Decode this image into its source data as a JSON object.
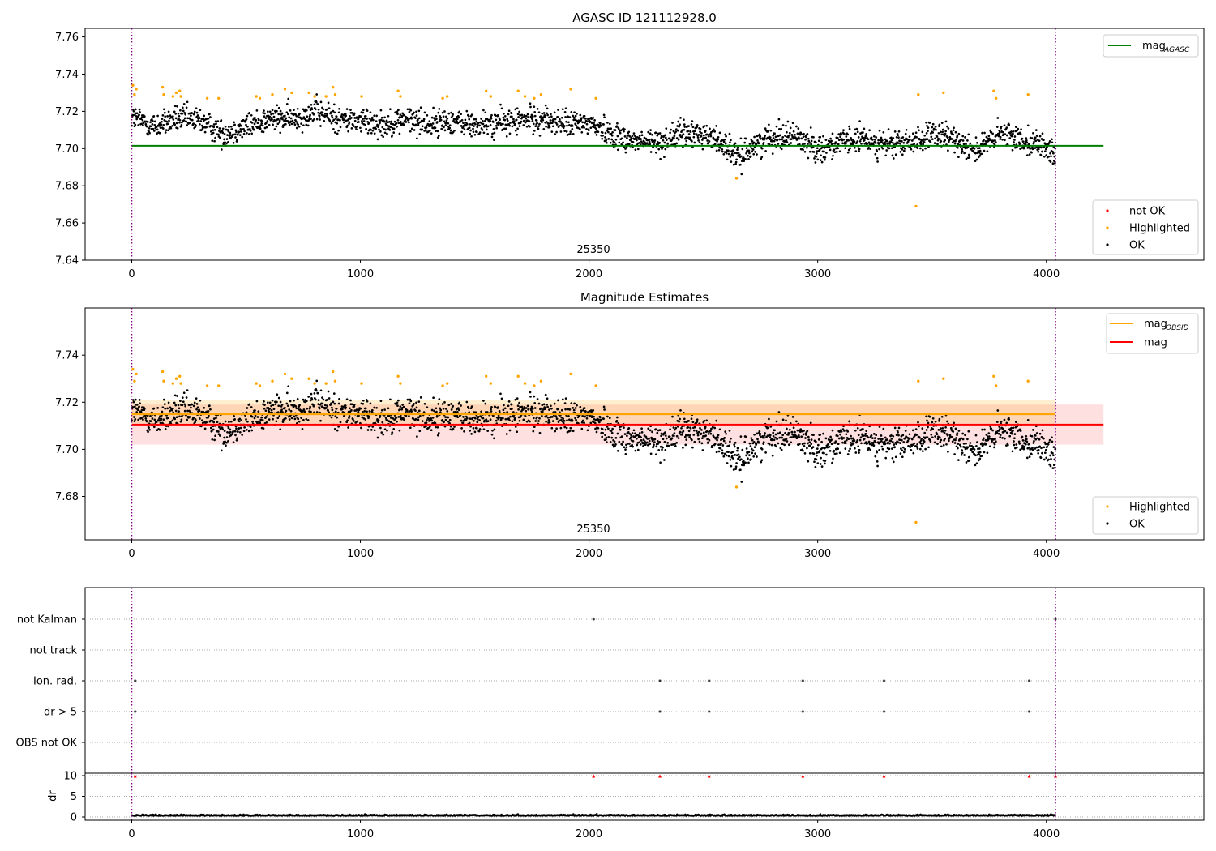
{
  "figure": {
    "title": "AGASC ID 121112928.0",
    "x_ticks": [
      0,
      1000,
      2000,
      3000,
      4000
    ],
    "obsid_markers": [
      0,
      4040
    ]
  },
  "chart_data": [
    {
      "type": "scatter",
      "title": "AGASC ID 121112928.0",
      "xlabel": "",
      "ylabel": "",
      "xlim": [
        -200,
        4700
      ],
      "ylim": [
        7.64,
        7.765
      ],
      "y_ticks": [
        "7.64",
        "7.66",
        "7.68",
        "7.70",
        "7.72",
        "7.74",
        "7.76"
      ],
      "obsid_label": "25350",
      "lines": [
        {
          "name": "mag_AGASC",
          "y": 7.7015,
          "x_range": [
            0,
            4250
          ],
          "color": "#008000"
        }
      ],
      "legends": [
        {
          "position": "top-right",
          "entries": [
            {
              "base": "mag",
              "sub": "AGASC",
              "kind": "line",
              "color": "#008000"
            }
          ]
        },
        {
          "position": "lower-right",
          "entries": [
            {
              "label": "not OK",
              "kind": "dot",
              "color": "#ff0000"
            },
            {
              "label": "Highlighted",
              "kind": "dot",
              "color": "#ffa500"
            },
            {
              "label": "OK",
              "kind": "dot",
              "color": "#000000"
            }
          ]
        }
      ],
      "highlighted_points": [
        [
          5,
          7.734
        ],
        [
          12,
          7.729
        ],
        [
          20,
          7.732
        ],
        [
          135,
          7.733
        ],
        [
          140,
          7.729
        ],
        [
          180,
          7.728
        ],
        [
          195,
          7.73
        ],
        [
          210,
          7.731
        ],
        [
          215,
          7.728
        ],
        [
          330,
          7.727
        ],
        [
          380,
          7.727
        ],
        [
          545,
          7.728
        ],
        [
          560,
          7.727
        ],
        [
          615,
          7.729
        ],
        [
          670,
          7.732
        ],
        [
          700,
          7.73
        ],
        [
          775,
          7.73
        ],
        [
          800,
          7.728
        ],
        [
          850,
          7.728
        ],
        [
          880,
          7.733
        ],
        [
          890,
          7.729
        ],
        [
          1005,
          7.728
        ],
        [
          1165,
          7.731
        ],
        [
          1175,
          7.728
        ],
        [
          1360,
          7.727
        ],
        [
          1380,
          7.728
        ],
        [
          1550,
          7.731
        ],
        [
          1570,
          7.728
        ],
        [
          1690,
          7.731
        ],
        [
          1720,
          7.728
        ],
        [
          1760,
          7.727
        ],
        [
          1790,
          7.729
        ],
        [
          1920,
          7.732
        ],
        [
          2030,
          7.727
        ],
        [
          2645,
          7.684
        ],
        [
          3430,
          7.669
        ],
        [
          3440,
          7.729
        ],
        [
          3550,
          7.73
        ],
        [
          3770,
          7.731
        ],
        [
          3780,
          7.727
        ],
        [
          3920,
          7.729
        ]
      ],
      "ok_trend": [
        [
          0,
          7.717
        ],
        [
          100,
          7.712
        ],
        [
          200,
          7.716
        ],
        [
          300,
          7.715
        ],
        [
          400,
          7.708
        ],
        [
          500,
          7.712
        ],
        [
          600,
          7.716
        ],
        [
          700,
          7.716
        ],
        [
          800,
          7.72
        ],
        [
          900,
          7.716
        ],
        [
          1000,
          7.715
        ],
        [
          1100,
          7.713
        ],
        [
          1200,
          7.716
        ],
        [
          1300,
          7.713
        ],
        [
          1400,
          7.715
        ],
        [
          1500,
          7.712
        ],
        [
          1600,
          7.714
        ],
        [
          1700,
          7.715
        ],
        [
          1800,
          7.716
        ],
        [
          1900,
          7.713
        ],
        [
          2000,
          7.714
        ],
        [
          2100,
          7.708
        ],
        [
          2200,
          7.704
        ],
        [
          2300,
          7.703
        ],
        [
          2400,
          7.708
        ],
        [
          2500,
          7.708
        ],
        [
          2600,
          7.702
        ],
        [
          2650,
          7.694
        ],
        [
          2700,
          7.7
        ],
        [
          2800,
          7.707
        ],
        [
          2900,
          7.707
        ],
        [
          3000,
          7.7
        ],
        [
          3100,
          7.703
        ],
        [
          3200,
          7.705
        ],
        [
          3300,
          7.702
        ],
        [
          3400,
          7.703
        ],
        [
          3500,
          7.707
        ],
        [
          3600,
          7.705
        ],
        [
          3700,
          7.699
        ],
        [
          3800,
          7.708
        ],
        [
          3900,
          7.705
        ],
        [
          4000,
          7.701
        ],
        [
          4040,
          7.695
        ]
      ]
    },
    {
      "type": "scatter",
      "title": "Magnitude Estimates",
      "xlabel": "",
      "ylabel": "",
      "xlim": [
        -200,
        4700
      ],
      "ylim": [
        7.6625,
        7.7615
      ],
      "y_ticks": [
        "7.68",
        "7.70",
        "7.72",
        "7.74"
      ],
      "obsid_label": "25350",
      "lines": [
        {
          "name": "mag_OBSID",
          "y": 7.715,
          "x_range": [
            0,
            4040
          ],
          "color": "#ffa500",
          "band": [
            7.711,
            7.721
          ]
        },
        {
          "name": "mag",
          "y": 7.7105,
          "x_range": [
            0,
            4250
          ],
          "color": "#ff0000",
          "band": [
            7.702,
            7.719
          ]
        }
      ],
      "legends": [
        {
          "position": "top-right",
          "entries": [
            {
              "base": "mag",
              "sub": "OBSID",
              "kind": "line",
              "color": "#ffa500"
            },
            {
              "label": "mag",
              "kind": "line",
              "color": "#ff0000"
            }
          ]
        },
        {
          "position": "lower-right",
          "entries": [
            {
              "label": "Highlighted",
              "kind": "dot",
              "color": "#ffa500"
            },
            {
              "label": "OK",
              "kind": "dot",
              "color": "#000000"
            }
          ]
        }
      ]
    },
    {
      "type": "scatter",
      "title": "",
      "categories": [
        "not Kalman",
        "not track",
        "Ion. rad.",
        "dr > 5",
        "OBS not OK"
      ],
      "flag_points": [
        {
          "category": "not Kalman",
          "x": [
            2020,
            4040
          ]
        },
        {
          "category": "not track",
          "x": []
        },
        {
          "category": "Ion. rad.",
          "x": [
            15,
            2310,
            2525,
            2935,
            3290,
            3925
          ]
        },
        {
          "category": "dr > 5",
          "x": [
            15,
            2310,
            2525,
            2935,
            3290,
            3925
          ]
        },
        {
          "category": "OBS not OK",
          "x": []
        }
      ]
    },
    {
      "type": "scatter",
      "title": "",
      "xlabel": "",
      "ylabel": "dr",
      "ylim": [
        -0.5,
        10.5
      ],
      "y_ticks": [
        "0",
        "5",
        "10"
      ],
      "clipped_points_x": [
        15,
        2020,
        2310,
        2525,
        2935,
        3290,
        3925,
        4040
      ],
      "dr_level": 0.3
    }
  ]
}
